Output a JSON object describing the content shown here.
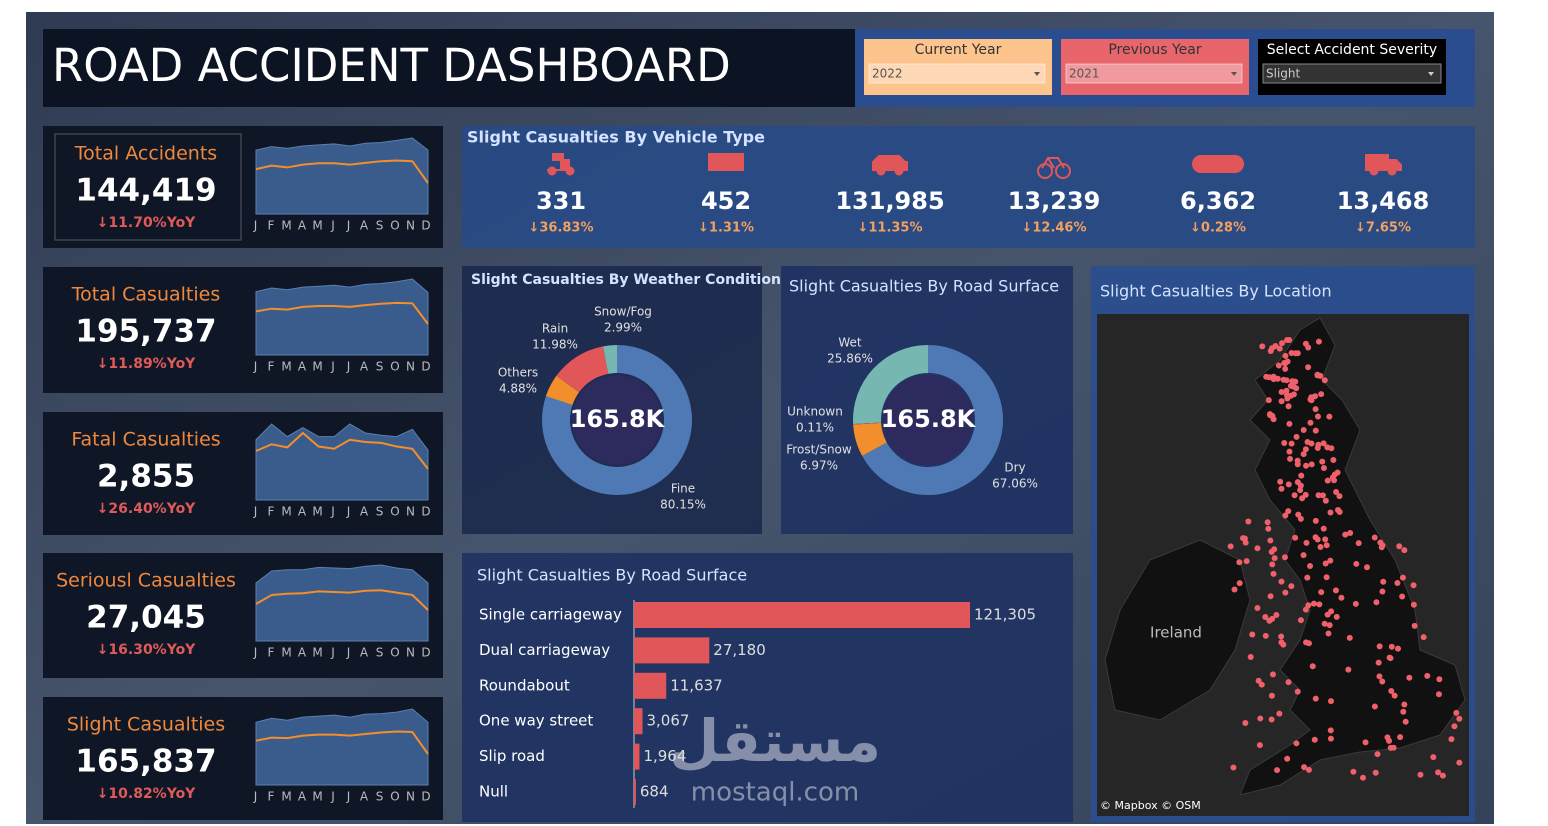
{
  "header": {
    "title": "ROAD ACCIDENT DASHBOARD"
  },
  "filters": [
    {
      "label": "Current Year",
      "value": "2022",
      "color": "#fdc48e"
    },
    {
      "label": "Previous Year",
      "value": "2021",
      "color": "#e8656c"
    },
    {
      "label": "Select Accident Severity",
      "value": "Slight",
      "color": "#000000"
    }
  ],
  "months": [
    "J",
    "F",
    "M",
    "A",
    "M",
    "J",
    "J",
    "A",
    "S",
    "O",
    "N",
    "D"
  ],
  "spark_colors": {
    "current": "#f28e2b",
    "previous": "#3a5c8c"
  },
  "kpis": [
    {
      "title": "Total Accidents",
      "value": "144,419",
      "yoy": "↓11.70%YoY",
      "current": [
        11850,
        12150,
        12000,
        12240,
        12360,
        12360,
        12240,
        12390,
        12540,
        12600,
        12540,
        10650
      ],
      "previous": [
        13500,
        13800,
        13650,
        13860,
        13950,
        14040,
        13860,
        14100,
        14160,
        14340,
        14550,
        13500
      ]
    },
    {
      "title": "Total Casualties",
      "value": "195,737",
      "yoy": "↓11.89%YoY",
      "current": [
        15600,
        15900,
        15800,
        16100,
        16200,
        16200,
        16100,
        16300,
        16450,
        16550,
        16500,
        14200
      ],
      "previous": [
        17800,
        18200,
        18000,
        18300,
        18400,
        18500,
        18300,
        18600,
        18700,
        18900,
        19200,
        17700
      ]
    },
    {
      "title": "Fatal Casualties",
      "value": "2,855",
      "yoy": "↓26.40%YoY",
      "current": [
        230,
        245,
        238,
        270,
        240,
        235,
        255,
        250,
        248,
        240,
        235,
        190
      ],
      "previous": [
        255,
        290,
        262,
        282,
        262,
        262,
        290,
        270,
        265,
        262,
        278,
        232
      ]
    },
    {
      "title": "Seriousl Casualties",
      "value": "27,045",
      "yoy": "↓16.30%YoY",
      "current": [
        2150,
        2300,
        2320,
        2330,
        2360,
        2350,
        2340,
        2370,
        2380,
        2340,
        2300,
        2050
      ],
      "previous": [
        2500,
        2700,
        2720,
        2720,
        2760,
        2750,
        2740,
        2780,
        2800,
        2750,
        2720,
        2500
      ]
    },
    {
      "title": "Slight Casualties",
      "value": "165,837",
      "yoy": "↓10.82%YoY",
      "current": [
        13200,
        13500,
        13450,
        13700,
        13800,
        13800,
        13700,
        13850,
        14000,
        14100,
        14050,
        11900
      ],
      "previous": [
        15000,
        15400,
        15200,
        15500,
        15600,
        15700,
        15500,
        15800,
        15850,
        16000,
        16300,
        15000
      ]
    }
  ],
  "vehicle": {
    "title": "Slight Casualties By Vehicle Type",
    "items": [
      {
        "value": "331",
        "change": "↓36.83%"
      },
      {
        "value": "452",
        "change": "↓1.31%"
      },
      {
        "value": "131,985",
        "change": "↓11.35%"
      },
      {
        "value": "13,239",
        "change": "↓12.46%"
      },
      {
        "value": "6,362",
        "change": "↓0.28%"
      },
      {
        "value": "13,468",
        "change": "↓7.65%"
      }
    ]
  },
  "charts": [
    {
      "type": "donut",
      "title": "Slight Casualties By Weather Condition",
      "center_label": "165.8K",
      "categories": [
        "Fine",
        "Others",
        "Rain",
        "Snow/Fog"
      ],
      "values": [
        80.15,
        4.88,
        11.98,
        2.99
      ],
      "value_labels": [
        "80.15%",
        "4.88%",
        "11.98%",
        "2.99%"
      ],
      "colors": [
        "#4e79b5",
        "#f28e2b",
        "#e15759",
        "#76b7b2"
      ]
    },
    {
      "type": "donut",
      "title": "Slight Casualties By Road Surface",
      "center_label": "165.8K",
      "categories": [
        "Dry",
        "Frost/Snow",
        "Unknown",
        "Wet"
      ],
      "values": [
        67.06,
        6.97,
        0.11,
        25.86
      ],
      "value_labels": [
        "67.06%",
        "6.97%",
        "0.11%",
        "25.86%"
      ],
      "colors": [
        "#4e79b5",
        "#f28e2b",
        "#e15759",
        "#76b7b2"
      ]
    },
    {
      "type": "bar",
      "title": "Slight Casualties By Road Surface",
      "categories": [
        "Single carriageway",
        "Dual carriageway",
        "Roundabout",
        "One way street",
        "Slip road",
        "Null"
      ],
      "values": [
        121305,
        27180,
        11637,
        3067,
        1964,
        684
      ],
      "value_labels": [
        "121,305",
        "27,180",
        "11,637",
        "3,067",
        "1,964",
        "684"
      ],
      "color": "#e15759"
    }
  ],
  "map": {
    "title": "Slight Casualties By Location",
    "place_label": "Ireland",
    "attribution": "© Mapbox © OSM"
  },
  "watermark": [
    "مستقل",
    "mostaql.com"
  ]
}
